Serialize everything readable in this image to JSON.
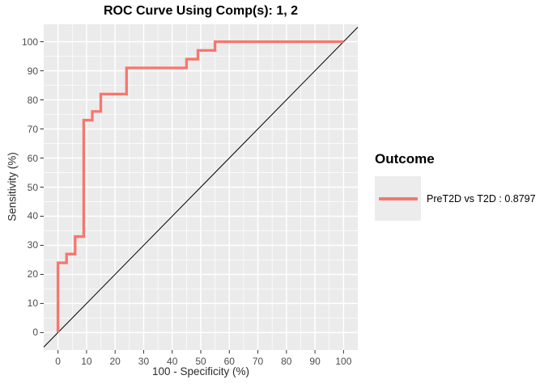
{
  "title": "ROC Curve Using Comp(s): 1, 2",
  "axes": {
    "x_label": "100 - Specificity (%)",
    "y_label": "Sensitivity (%)",
    "x_ticks": [
      "0",
      "10",
      "20",
      "30",
      "40",
      "50",
      "60",
      "70",
      "80",
      "90",
      "100"
    ],
    "y_ticks": [
      "0",
      "10",
      "20",
      "30",
      "40",
      "50",
      "60",
      "70",
      "80",
      "90",
      "100"
    ]
  },
  "legend": {
    "title": "Outcome",
    "entries": [
      {
        "label": "PreT2D vs T2D : 0.8797",
        "color": "#F8766D"
      }
    ]
  },
  "colors": {
    "curve": "#F8766D",
    "panel_bg": "#EBEBEB",
    "grid_major": "#FFFFFF",
    "grid_minor": "#FFFFFF",
    "reference_line": "#000000",
    "tick_mark": "#333333",
    "tick_text": "#4D4D4D",
    "axis_title_text": "#2B2B2B",
    "title_text": "#000000",
    "legend_key_bg": "#ECECEC",
    "background": "#FFFFFF"
  },
  "chart_data": {
    "type": "line",
    "subtype": "roc-step-curve",
    "title": "ROC Curve Using Comp(s): 1, 2",
    "xlabel": "100 - Specificity (%)",
    "ylabel": "Sensitivity (%)",
    "xlim": [
      0,
      100
    ],
    "ylim": [
      0,
      100
    ],
    "x_tick_values": [
      0,
      10,
      20,
      30,
      40,
      50,
      60,
      70,
      80,
      90,
      100
    ],
    "y_tick_values": [
      0,
      10,
      20,
      30,
      40,
      50,
      60,
      70,
      80,
      90,
      100
    ],
    "grid": {
      "on": true,
      "major_step": 10,
      "minor_step": 5
    },
    "legend_position": "right",
    "legend_title": "Outcome",
    "series": [
      {
        "name": "PreT2D vs T2D : 0.8797",
        "auc": 0.8797,
        "color": "#F8766D",
        "points": [
          [
            0,
            0
          ],
          [
            0,
            24
          ],
          [
            3,
            24
          ],
          [
            3,
            27
          ],
          [
            6,
            27
          ],
          [
            6,
            33
          ],
          [
            9,
            33
          ],
          [
            9,
            73
          ],
          [
            12,
            73
          ],
          [
            12,
            76
          ],
          [
            15,
            76
          ],
          [
            15,
            82
          ],
          [
            24,
            82
          ],
          [
            24,
            91
          ],
          [
            45,
            91
          ],
          [
            45,
            94
          ],
          [
            49,
            94
          ],
          [
            49,
            97
          ],
          [
            55,
            97
          ],
          [
            55,
            100
          ],
          [
            100,
            100
          ]
        ]
      }
    ],
    "reference_line": {
      "slope": 1,
      "intercept": 0,
      "color": "#000000"
    }
  }
}
